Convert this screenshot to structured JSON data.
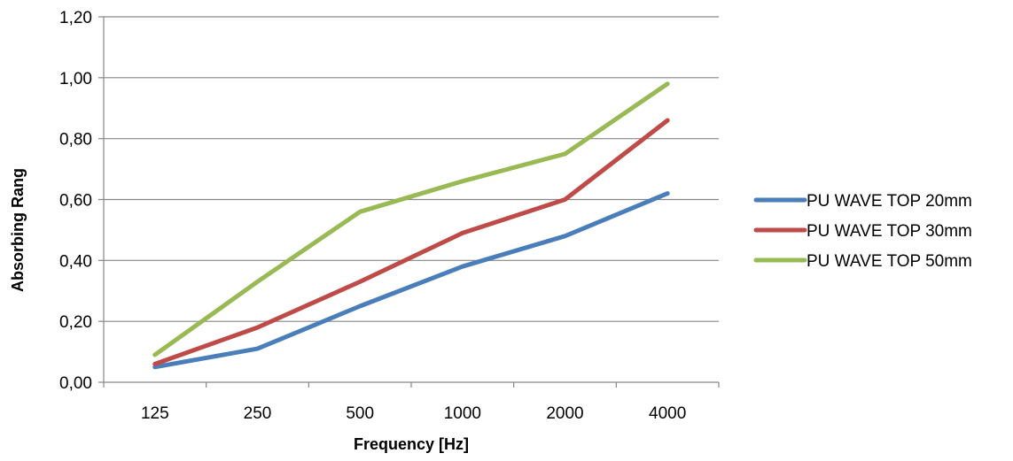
{
  "chart_data": {
    "type": "line",
    "title": "",
    "xlabel": "Frequency [Hz]",
    "ylabel": "Absorbing Rang",
    "categories": [
      "125",
      "250",
      "500",
      "1000",
      "2000",
      "4000"
    ],
    "ylim": [
      0,
      1.2
    ],
    "yticks": [
      "0,00",
      "0,20",
      "0,40",
      "0,60",
      "0,80",
      "1,00",
      "1,20"
    ],
    "grid": "horizontal",
    "legend_position": "right",
    "series": [
      {
        "name": "PU WAVE TOP 20mm",
        "color": "#4a7ebb",
        "values": [
          0.05,
          0.11,
          0.25,
          0.38,
          0.48,
          0.62
        ]
      },
      {
        "name": "PU WAVE TOP 30mm",
        "color": "#be4b48",
        "values": [
          0.06,
          0.18,
          0.33,
          0.49,
          0.6,
          0.86
        ]
      },
      {
        "name": "PU WAVE TOP 50mm",
        "color": "#98b954",
        "values": [
          0.09,
          0.33,
          0.56,
          0.66,
          0.75,
          0.98
        ]
      }
    ]
  }
}
